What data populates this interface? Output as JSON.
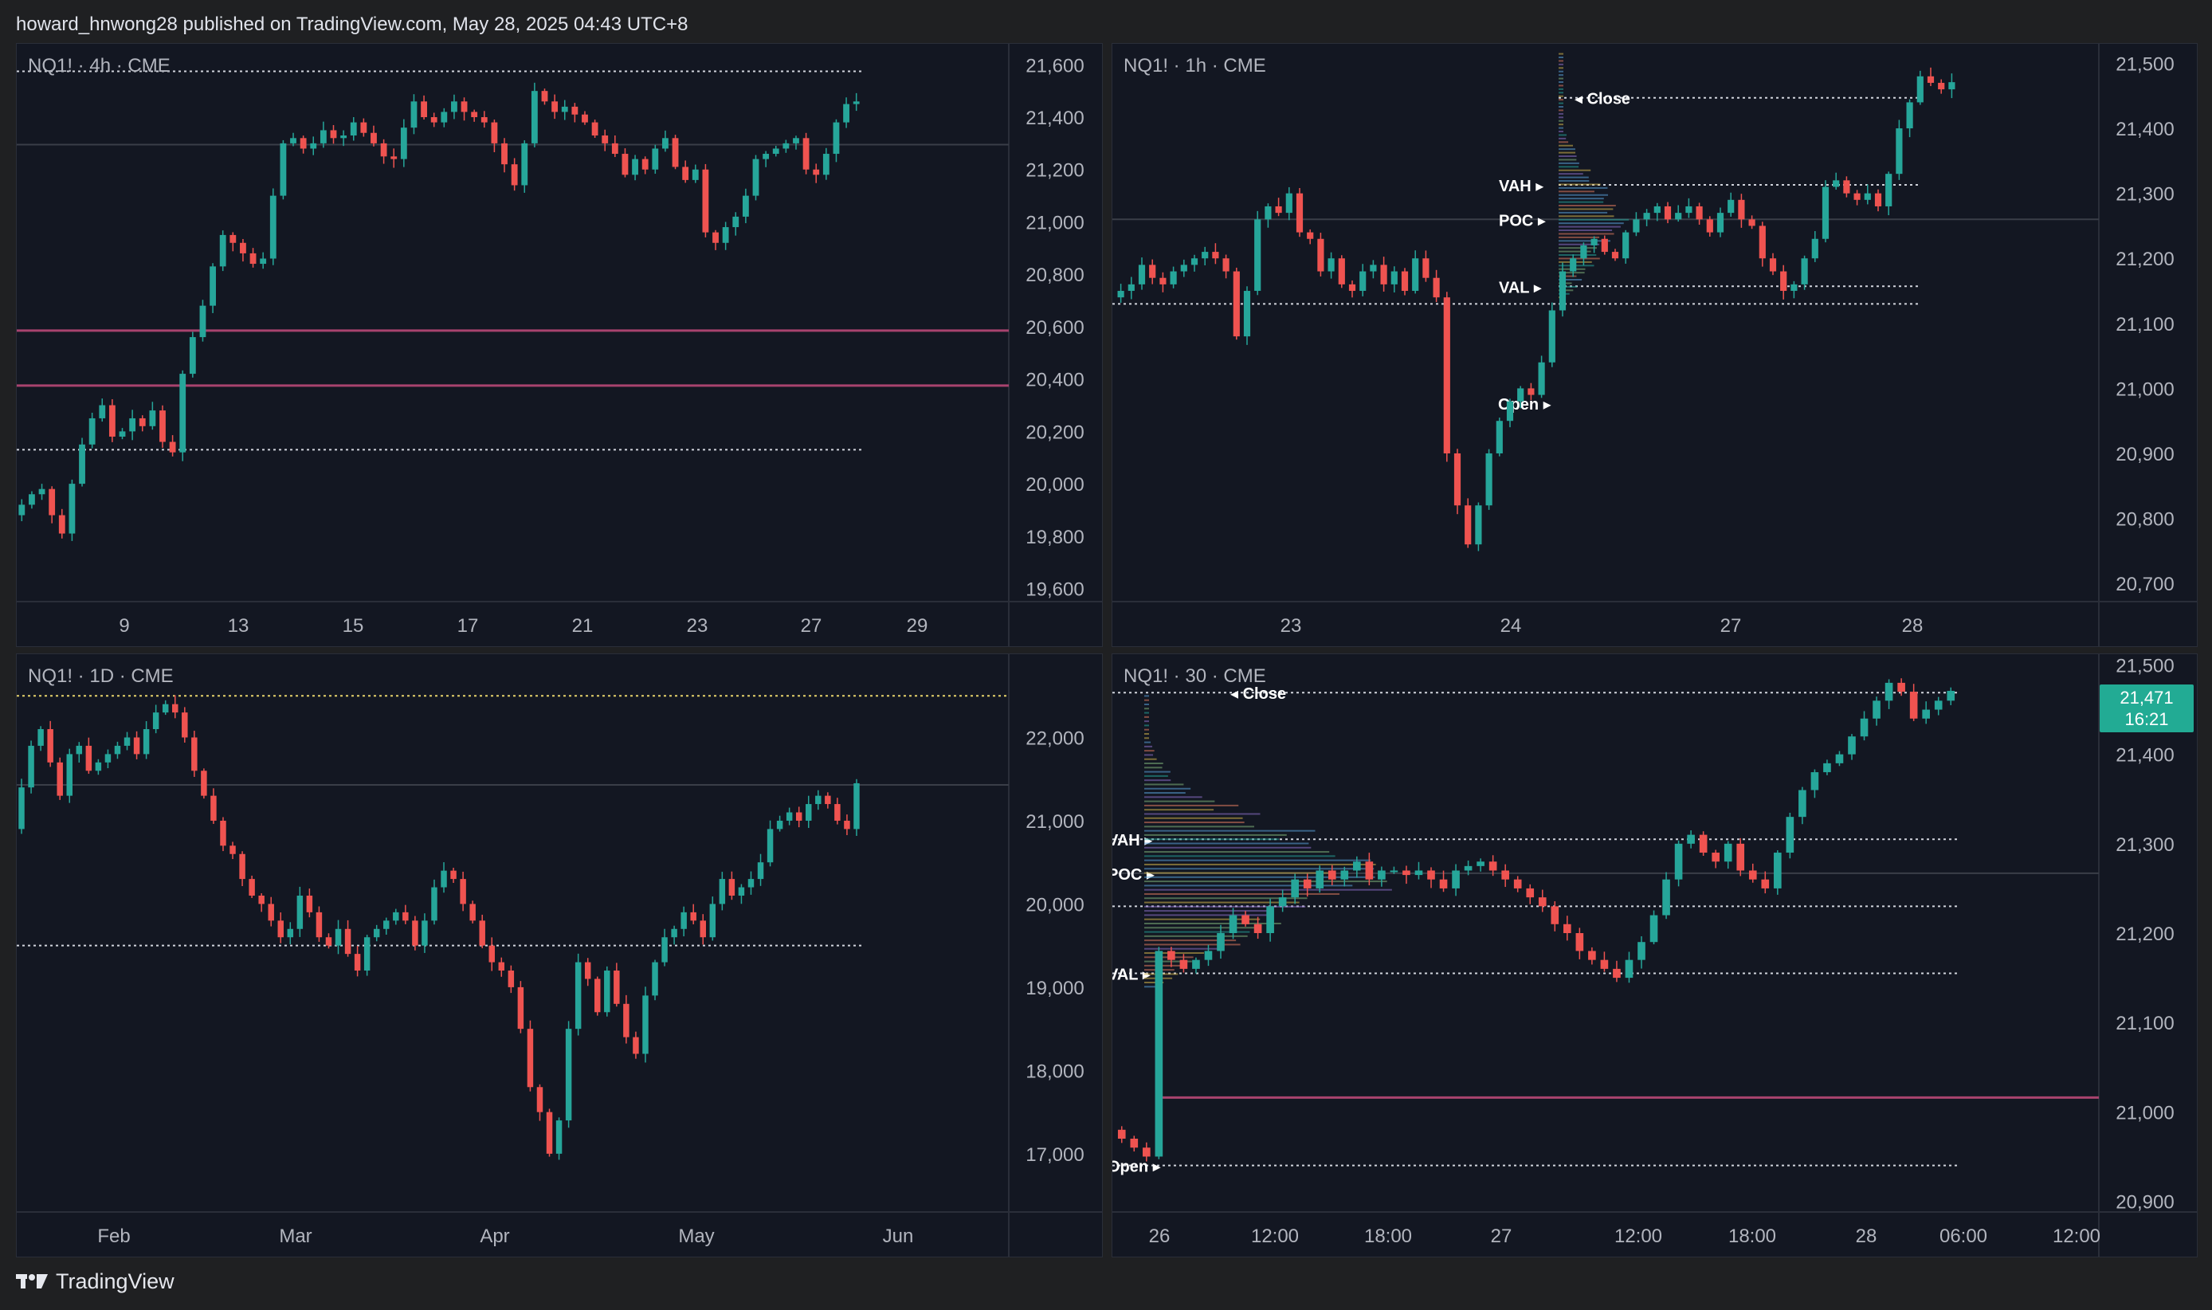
{
  "header": {
    "text": "howard_hnwong28 published on TradingView.com, May 28, 2025 04:43 UTC+8"
  },
  "footer": {
    "brand": "TradingView",
    "logo_icon": "tradingview-logo-icon"
  },
  "colors": {
    "up": "#26a69a",
    "down": "#ef5350",
    "panel_bg": "#131722",
    "zone": "#a8436e",
    "grid_text": "#b2b5be"
  },
  "chart_data": [
    {
      "id": "4h",
      "type": "candlestick",
      "title": "NQ1! · 4h · CME",
      "y_ticks": [
        "21,600",
        "21,400",
        "21,200",
        "21,000",
        "20,800",
        "20,600",
        "20,400",
        "20,200",
        "20,000",
        "19,800",
        "19,600"
      ],
      "ylim": [
        19550,
        21680
      ],
      "x_ticks": [
        "9",
        "13",
        "15",
        "17",
        "21",
        "23",
        "27",
        "29"
      ],
      "levels": [
        {
          "kind": "dotted",
          "value": 21575
        },
        {
          "kind": "solid-gray",
          "value": 21295
        },
        {
          "kind": "zone",
          "value": 20585
        },
        {
          "kind": "zone",
          "value": 20375
        },
        {
          "kind": "dotted",
          "value": 20130
        }
      ],
      "closes": [
        19920,
        19960,
        19980,
        19880,
        19810,
        20000,
        20150,
        20250,
        20300,
        20180,
        20200,
        20250,
        20220,
        20280,
        20160,
        20120,
        20420,
        20560,
        20680,
        20830,
        20950,
        20920,
        20880,
        20840,
        20860,
        21100,
        21300,
        21320,
        21280,
        21300,
        21350,
        21320,
        21330,
        21380,
        21340,
        21300,
        21250,
        21240,
        21360,
        21460,
        21400,
        21380,
        21420,
        21460,
        21420,
        21400,
        21380,
        21300,
        21220,
        21140,
        21300,
        21500,
        21460,
        21420,
        21440,
        21410,
        21380,
        21330,
        21300,
        21260,
        21180,
        21240,
        21200,
        21280,
        21320,
        21210,
        21160,
        21200,
        20960,
        20920,
        20980,
        21020,
        21100,
        21240,
        21260,
        21280,
        21300,
        21320,
        21200,
        21180,
        21260,
        21380,
        21450,
        21460
      ]
    },
    {
      "id": "1h",
      "type": "candlestick",
      "title": "NQ1! · 1h · CME",
      "y_ticks": [
        "21,500",
        "21,400",
        "21,300",
        "21,200",
        "21,100",
        "21,000",
        "20,900",
        "20,800",
        "20,700"
      ],
      "ylim": [
        20672,
        21530
      ],
      "x_ticks": [
        "23",
        "24",
        "27",
        "28"
      ],
      "levels": [
        {
          "kind": "dotted",
          "value": 21447,
          "label": "Close"
        },
        {
          "kind": "dotted",
          "value": 21313,
          "label": "VAH"
        },
        {
          "kind": "solid-gray",
          "value": 21260,
          "label": "POC"
        },
        {
          "kind": "dotted",
          "value": 21157,
          "label": "VAL"
        },
        {
          "kind": "dotted",
          "value": 21130
        },
        {
          "kind": "marker",
          "value": 20977,
          "label": "Open"
        }
      ],
      "closes": [
        21150,
        21160,
        21190,
        21170,
        21160,
        21180,
        21190,
        21200,
        21210,
        21200,
        21180,
        21080,
        21150,
        21260,
        21280,
        21270,
        21300,
        21240,
        21230,
        21180,
        21200,
        21160,
        21150,
        21180,
        21190,
        21160,
        21180,
        21150,
        21200,
        21170,
        21140,
        20900,
        20820,
        20760,
        20820,
        20900,
        20950,
        20980,
        21000,
        20990,
        21040,
        21120,
        21180,
        21200,
        21220,
        21230,
        21210,
        21200,
        21240,
        21260,
        21270,
        21280,
        21260,
        21270,
        21280,
        21260,
        21240,
        21270,
        21290,
        21260,
        21250,
        21200,
        21180,
        21150,
        21160,
        21200,
        21230,
        21310,
        21320,
        21300,
        21290,
        21300,
        21280,
        21330,
        21400,
        21440,
        21480,
        21470,
        21460,
        21471
      ]
    },
    {
      "id": "1d",
      "type": "candlestick",
      "title": "NQ1! · 1D · CME",
      "y_ticks": [
        "22,000",
        "21,000",
        "20,000",
        "19,000",
        "18,000",
        "17,000"
      ],
      "ylim": [
        16300,
        23000
      ],
      "x_ticks": [
        "Feb",
        "Mar",
        "Apr",
        "May",
        "Jun"
      ],
      "levels": [
        {
          "kind": "dotted-yellow",
          "value": 22500
        },
        {
          "kind": "solid-gray",
          "value": 21430
        },
        {
          "kind": "dotted",
          "value": 19500
        }
      ],
      "closes": [
        21400,
        21900,
        22100,
        21700,
        21300,
        21800,
        21900,
        21600,
        21700,
        21800,
        21900,
        22000,
        21800,
        22100,
        22300,
        22400,
        22300,
        22000,
        21600,
        21300,
        21000,
        20700,
        20600,
        20300,
        20100,
        20000,
        19800,
        19600,
        19700,
        20100,
        19900,
        19600,
        19500,
        19700,
        19400,
        19200,
        19600,
        19700,
        19800,
        19900,
        19800,
        19500,
        19800,
        20200,
        20400,
        20300,
        20000,
        19800,
        19500,
        19300,
        19200,
        19000,
        18500,
        17800,
        17500,
        17000,
        17400,
        18500,
        19300,
        19100,
        18700,
        19200,
        18800,
        18400,
        18200,
        18900,
        19300,
        19600,
        19700,
        19900,
        19800,
        19600,
        20000,
        20300,
        20100,
        20200,
        20300,
        20500,
        20900,
        21000,
        21100,
        21000,
        21200,
        21300,
        21200,
        21000,
        20900,
        21450
      ]
    },
    {
      "id": "30m",
      "type": "candlestick",
      "title": "NQ1! · 30 · CME",
      "y_ticks": [
        "21,500",
        "21,400",
        "21,300",
        "21,200",
        "21,100",
        "21,000",
        "20,900"
      ],
      "ylim": [
        20888,
        21512
      ],
      "x_ticks": [
        "26",
        "12:00",
        "18:00",
        "27",
        "12:00",
        "18:00",
        "28",
        "06:00",
        "12:00"
      ],
      "last_price": "21,471",
      "countdown": "16:21",
      "levels": [
        {
          "kind": "dotted",
          "value": 21469,
          "label": "Close"
        },
        {
          "kind": "dotted",
          "value": 21305,
          "label": "VAH"
        },
        {
          "kind": "solid-gray",
          "value": 21267,
          "label": "POC"
        },
        {
          "kind": "dotted",
          "value": 21230
        },
        {
          "kind": "dotted",
          "value": 21155,
          "label": "VAL"
        },
        {
          "kind": "zone",
          "value": 21016
        },
        {
          "kind": "dotted",
          "value": 20940,
          "label": "Open"
        }
      ],
      "closes": [
        20970,
        20960,
        20950,
        21180,
        21170,
        21160,
        21170,
        21180,
        21200,
        21220,
        21210,
        21200,
        21230,
        21240,
        21260,
        21250,
        21270,
        21260,
        21270,
        21280,
        21260,
        21270,
        21270,
        21265,
        21270,
        21260,
        21250,
        21270,
        21275,
        21280,
        21270,
        21260,
        21250,
        21240,
        21230,
        21210,
        21200,
        21180,
        21170,
        21160,
        21150,
        21170,
        21190,
        21220,
        21260,
        21300,
        21310,
        21290,
        21280,
        21300,
        21270,
        21260,
        21250,
        21290,
        21330,
        21360,
        21380,
        21390,
        21400,
        21420,
        21440,
        21460,
        21480,
        21470,
        21440,
        21450,
        21460,
        21471
      ]
    }
  ]
}
